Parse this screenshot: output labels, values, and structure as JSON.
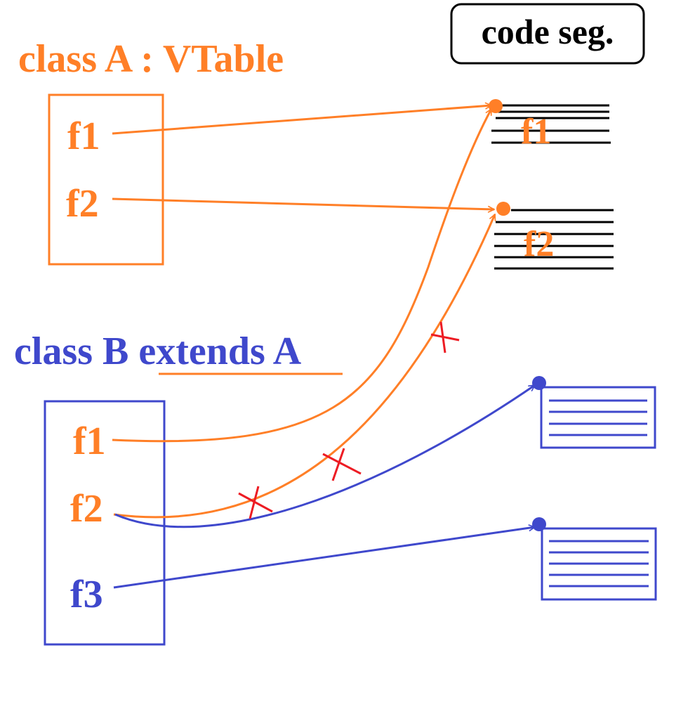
{
  "code_segment": {
    "label": "code seg."
  },
  "class_a": {
    "title": "class A : VTable",
    "entries": [
      "f1",
      "f2"
    ]
  },
  "class_b": {
    "title_prefix": "class B ",
    "title_extends": "extends A",
    "entries": [
      "f1",
      "f2",
      "f3"
    ]
  },
  "code_blocks": {
    "f1": "f1",
    "f2": "f2"
  },
  "colors": {
    "orange": "#ff7f27",
    "blue": "#3f48cc",
    "red": "#ed1c24",
    "black": "#000000"
  }
}
